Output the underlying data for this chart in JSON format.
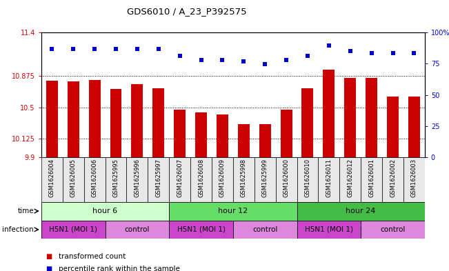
{
  "title": "GDS6010 / A_23_P392575",
  "samples": [
    "GSM1626004",
    "GSM1626005",
    "GSM1626006",
    "GSM1625995",
    "GSM1625996",
    "GSM1625997",
    "GSM1626007",
    "GSM1626008",
    "GSM1626009",
    "GSM1625998",
    "GSM1625999",
    "GSM1626000",
    "GSM1626010",
    "GSM1626011",
    "GSM1626012",
    "GSM1626001",
    "GSM1626002",
    "GSM1626003"
  ],
  "bar_values": [
    10.82,
    10.81,
    10.83,
    10.72,
    10.78,
    10.73,
    10.47,
    10.44,
    10.41,
    10.3,
    10.3,
    10.47,
    10.73,
    10.95,
    10.85,
    10.85,
    10.63,
    10.63
  ],
  "dot_values": [
    11.2,
    11.2,
    11.2,
    11.2,
    11.2,
    11.2,
    11.12,
    11.07,
    11.07,
    11.05,
    11.02,
    11.07,
    11.12,
    11.24,
    11.18,
    11.15,
    11.15,
    11.15
  ],
  "bar_color": "#cc0000",
  "dot_color": "#0000cc",
  "ylim_left": [
    9.9,
    11.4
  ],
  "ylim_right": [
    0,
    100
  ],
  "yticks_left": [
    9.9,
    10.125,
    10.5,
    10.875,
    11.4
  ],
  "yticks_right": [
    0,
    25,
    50,
    75,
    100
  ],
  "ytick_labels_left": [
    "9.9",
    "10.125",
    "10.5",
    "10.875",
    "11.4"
  ],
  "ytick_labels_right": [
    "0",
    "25",
    "50",
    "75",
    "100%"
  ],
  "grid_values": [
    10.125,
    10.5,
    10.875
  ],
  "time_groups": [
    {
      "label": "hour 6",
      "start": 0,
      "end": 6,
      "color": "#ccffcc"
    },
    {
      "label": "hour 12",
      "start": 6,
      "end": 12,
      "color": "#66dd66"
    },
    {
      "label": "hour 24",
      "start": 12,
      "end": 18,
      "color": "#44bb44"
    }
  ],
  "infection_groups": [
    {
      "label": "H5N1 (MOI 1)",
      "start": 0,
      "end": 3,
      "color": "#cc44cc"
    },
    {
      "label": "control",
      "start": 3,
      "end": 6,
      "color": "#dd88dd"
    },
    {
      "label": "H5N1 (MOI 1)",
      "start": 6,
      "end": 9,
      "color": "#cc44cc"
    },
    {
      "label": "control",
      "start": 9,
      "end": 12,
      "color": "#dd88dd"
    },
    {
      "label": "H5N1 (MOI 1)",
      "start": 12,
      "end": 15,
      "color": "#cc44cc"
    },
    {
      "label": "control",
      "start": 15,
      "end": 18,
      "color": "#dd88dd"
    }
  ],
  "legend_items": [
    {
      "label": "transformed count",
      "color": "#cc0000"
    },
    {
      "label": "percentile rank within the sample",
      "color": "#0000cc"
    }
  ],
  "time_label": "time",
  "infection_label": "infection",
  "bg_color": "#e8e8e8"
}
